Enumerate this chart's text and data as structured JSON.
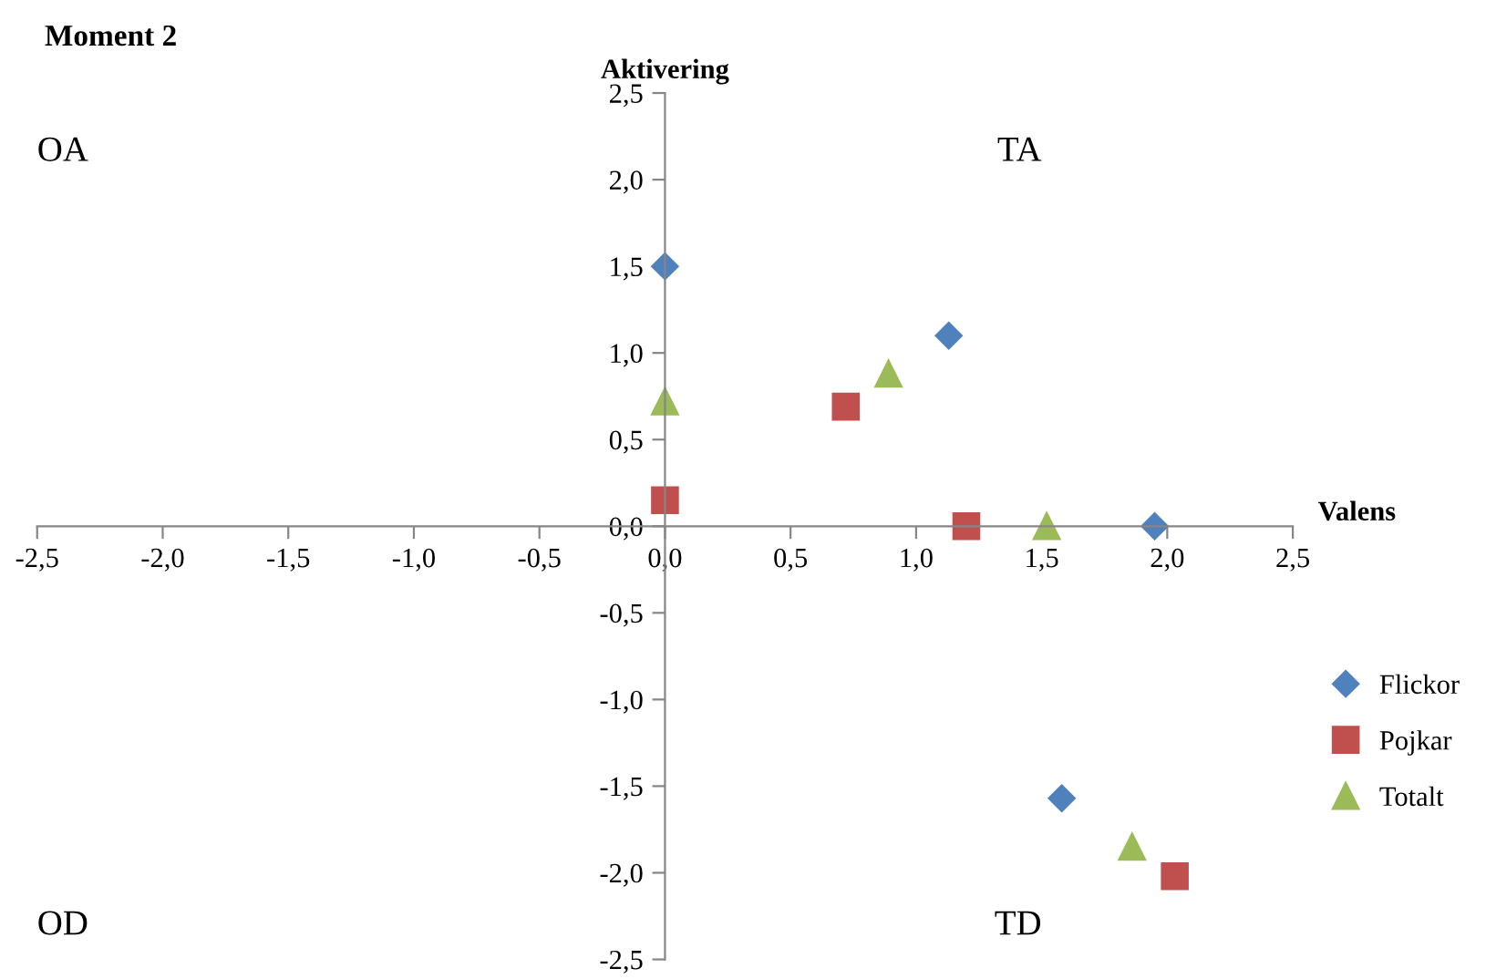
{
  "chart_data": {
    "type": "scatter",
    "title": "Moment 2",
    "xlabel": "Valens",
    "ylabel": "Aktivering",
    "annotations": [
      "OA",
      "TA",
      "OD",
      "TD"
    ],
    "series": [
      {
        "name": "Flickor",
        "color": "#4f81bd",
        "marker": "diamond",
        "x": [
          0.0,
          1.13,
          1.95,
          1.58
        ],
        "values": [
          1.5,
          1.1,
          0.0,
          -1.57
        ]
      },
      {
        "name": "Pojkar",
        "color": "#c0504d",
        "marker": "square",
        "x": [
          0.0,
          0.72,
          1.2,
          2.03
        ],
        "values": [
          0.15,
          0.69,
          0.0,
          -2.02
        ]
      },
      {
        "name": "Totalt",
        "color": "#9bbb59",
        "marker": "triangle",
        "x": [
          0.0,
          0.89,
          1.52,
          1.86
        ],
        "values": [
          0.72,
          0.88,
          0.0,
          -1.85
        ]
      }
    ],
    "xlim": [
      -2.5,
      2.5
    ],
    "ylim": [
      -2.5,
      2.5
    ],
    "xticks": [
      {
        "value": -2.5,
        "label": "-2,5"
      },
      {
        "value": -2.0,
        "label": "-2,0"
      },
      {
        "value": -1.5,
        "label": "-1,5"
      },
      {
        "value": -1.0,
        "label": "-1,0"
      },
      {
        "value": -0.5,
        "label": "-0,5"
      },
      {
        "value": 0.0,
        "label": "0,0"
      },
      {
        "value": 0.5,
        "label": "0,5"
      },
      {
        "value": 1.0,
        "label": "1,0"
      },
      {
        "value": 1.5,
        "label": "1,5"
      },
      {
        "value": 2.0,
        "label": "2,0"
      },
      {
        "value": 2.5,
        "label": "2,5"
      }
    ],
    "yticks": [
      {
        "value": -2.5,
        "label": "-2,5"
      },
      {
        "value": -2.0,
        "label": "-2,0"
      },
      {
        "value": -1.5,
        "label": "-1,5"
      },
      {
        "value": -1.0,
        "label": "-1,0"
      },
      {
        "value": -0.5,
        "label": "-0,5"
      },
      {
        "value": 0.0,
        "label": "0,0"
      },
      {
        "value": 0.5,
        "label": "0,5"
      },
      {
        "value": 1.0,
        "label": "1,0"
      },
      {
        "value": 1.5,
        "label": "1,5"
      },
      {
        "value": 2.0,
        "label": "2,0"
      },
      {
        "value": 2.5,
        "label": "2,5"
      }
    ],
    "grid": false,
    "legend": "right"
  }
}
